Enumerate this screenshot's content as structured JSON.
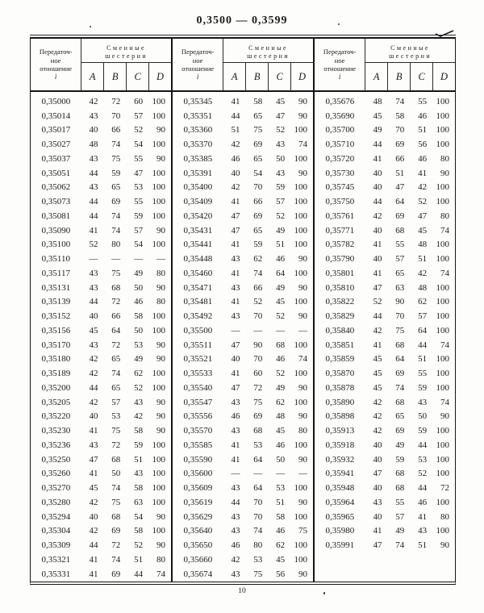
{
  "title": "0,3500 — 0,3599",
  "page_number": "10",
  "header": {
    "ratio_label_lines": [
      "Передаточ-",
      "ное",
      "отношение",
      "i"
    ],
    "gears_label_line1": "Сменные",
    "gears_label_line2": "шестерни",
    "gear_columns": [
      "A",
      "B",
      "C",
      "D"
    ]
  },
  "tables": [
    {
      "rows": [
        [
          "0,35000",
          "42",
          "72",
          "60",
          "100"
        ],
        [
          "0,35014",
          "43",
          "70",
          "57",
          "100"
        ],
        [
          "0,35017",
          "40",
          "66",
          "52",
          "90"
        ],
        [
          "0,35027",
          "48",
          "74",
          "54",
          "100"
        ],
        [
          "0,35037",
          "43",
          "75",
          "55",
          "90"
        ],
        [
          "0,35051",
          "44",
          "59",
          "47",
          "100"
        ],
        [
          "0,35062",
          "43",
          "65",
          "53",
          "100"
        ],
        [
          "0,35073",
          "44",
          "69",
          "55",
          "100"
        ],
        [
          "0,35081",
          "44",
          "74",
          "59",
          "100"
        ],
        [
          "0,35090",
          "41",
          "74",
          "57",
          "90"
        ],
        [
          "0,35100",
          "52",
          "80",
          "54",
          "100"
        ],
        [
          "0,35110",
          "—",
          "—",
          "—",
          "—"
        ],
        [
          "0,35117",
          "43",
          "75",
          "49",
          "80"
        ],
        [
          "0,35131",
          "43",
          "68",
          "50",
          "90"
        ],
        [
          "0,35139",
          "44",
          "72",
          "46",
          "80"
        ],
        [
          "0,35152",
          "40",
          "66",
          "58",
          "100"
        ],
        [
          "0,35156",
          "45",
          "64",
          "50",
          "100"
        ],
        [
          "0,35170",
          "43",
          "72",
          "53",
          "90"
        ],
        [
          "0,35180",
          "42",
          "65",
          "49",
          "90"
        ],
        [
          "0,35189",
          "42",
          "74",
          "62",
          "100"
        ],
        [
          "0,35200",
          "44",
          "65",
          "52",
          "100"
        ],
        [
          "0,35205",
          "42",
          "57",
          "43",
          "90"
        ],
        [
          "0,35220",
          "40",
          "53",
          "42",
          "90"
        ],
        [
          "0,35230",
          "41",
          "75",
          "58",
          "90"
        ],
        [
          "0,35236",
          "43",
          "72",
          "59",
          "100"
        ],
        [
          "0,35250",
          "47",
          "68",
          "51",
          "100"
        ],
        [
          "0,35260",
          "41",
          "50",
          "43",
          "100"
        ],
        [
          "0,35270",
          "45",
          "74",
          "58",
          "100"
        ],
        [
          "0,35280",
          "42",
          "75",
          "63",
          "100"
        ],
        [
          "0,35294",
          "40",
          "68",
          "54",
          "90"
        ],
        [
          "0,35304",
          "42",
          "69",
          "58",
          "100"
        ],
        [
          "0,35309",
          "44",
          "72",
          "52",
          "90"
        ],
        [
          "0,35321",
          "41",
          "74",
          "51",
          "80"
        ],
        [
          "0,35331",
          "41",
          "69",
          "44",
          "74"
        ]
      ]
    },
    {
      "rows": [
        [
          "0,35345",
          "41",
          "58",
          "45",
          "90"
        ],
        [
          "0,35351",
          "44",
          "65",
          "47",
          "90"
        ],
        [
          "0,35360",
          "51",
          "75",
          "52",
          "100"
        ],
        [
          "0,35370",
          "42",
          "69",
          "43",
          "74"
        ],
        [
          "0,35385",
          "46",
          "65",
          "50",
          "100"
        ],
        [
          "0,35391",
          "40",
          "54",
          "43",
          "90"
        ],
        [
          "0,35400",
          "42",
          "70",
          "59",
          "100"
        ],
        [
          "0,35409",
          "41",
          "66",
          "57",
          "100"
        ],
        [
          "0,35420",
          "47",
          "69",
          "52",
          "100"
        ],
        [
          "0,35431",
          "47",
          "65",
          "49",
          "100"
        ],
        [
          "0,35441",
          "41",
          "59",
          "51",
          "100"
        ],
        [
          "0,35448",
          "43",
          "62",
          "46",
          "90"
        ],
        [
          "0,35460",
          "41",
          "74",
          "64",
          "100"
        ],
        [
          "0,35471",
          "43",
          "66",
          "49",
          "90"
        ],
        [
          "0,35481",
          "41",
          "52",
          "45",
          "100"
        ],
        [
          "0,35492",
          "43",
          "70",
          "52",
          "90"
        ],
        [
          "0,35500",
          "—",
          "—",
          "—",
          "—"
        ],
        [
          "0,35511",
          "47",
          "90",
          "68",
          "100"
        ],
        [
          "0,35521",
          "40",
          "70",
          "46",
          "74"
        ],
        [
          "0,35533",
          "41",
          "60",
          "52",
          "100"
        ],
        [
          "0,35540",
          "47",
          "72",
          "49",
          "90"
        ],
        [
          "0,35547",
          "43",
          "75",
          "62",
          "100"
        ],
        [
          "0,35556",
          "46",
          "69",
          "48",
          "90"
        ],
        [
          "0,35570",
          "43",
          "68",
          "45",
          "80"
        ],
        [
          "0,35585",
          "41",
          "53",
          "46",
          "100"
        ],
        [
          "0,35590",
          "41",
          "64",
          "50",
          "90"
        ],
        [
          "0,35600",
          "—",
          "—",
          "—",
          "—"
        ],
        [
          "0,35609",
          "43",
          "64",
          "53",
          "100"
        ],
        [
          "0,35619",
          "44",
          "70",
          "51",
          "90"
        ],
        [
          "0,35629",
          "43",
          "70",
          "58",
          "100"
        ],
        [
          "0,35640",
          "43",
          "74",
          "46",
          "75"
        ],
        [
          "0,35650",
          "46",
          "80",
          "62",
          "100"
        ],
        [
          "0,35660",
          "42",
          "53",
          "45",
          "100"
        ],
        [
          "0,35674",
          "43",
          "75",
          "56",
          "90"
        ]
      ]
    },
    {
      "rows": [
        [
          "0,35676",
          "48",
          "74",
          "55",
          "100"
        ],
        [
          "0,35690",
          "45",
          "58",
          "46",
          "100"
        ],
        [
          "0,35700",
          "49",
          "70",
          "51",
          "100"
        ],
        [
          "0,35710",
          "44",
          "69",
          "56",
          "100"
        ],
        [
          "0,35720",
          "41",
          "66",
          "46",
          "80"
        ],
        [
          "0,35730",
          "40",
          "51",
          "41",
          "90"
        ],
        [
          "0,35745",
          "40",
          "47",
          "42",
          "100"
        ],
        [
          "0,35750",
          "44",
          "64",
          "52",
          "100"
        ],
        [
          "0,35761",
          "42",
          "69",
          "47",
          "80"
        ],
        [
          "0,35771",
          "40",
          "68",
          "45",
          "74"
        ],
        [
          "0,35782",
          "41",
          "55",
          "48",
          "100"
        ],
        [
          "0,35790",
          "40",
          "57",
          "51",
          "100"
        ],
        [
          "0,35801",
          "41",
          "65",
          "42",
          "74"
        ],
        [
          "0,35810",
          "47",
          "63",
          "48",
          "100"
        ],
        [
          "0,35822",
          "52",
          "90",
          "62",
          "100"
        ],
        [
          "0,35829",
          "44",
          "70",
          "57",
          "100"
        ],
        [
          "0,35840",
          "42",
          "75",
          "64",
          "100"
        ],
        [
          "0,35851",
          "41",
          "68",
          "44",
          "74"
        ],
        [
          "0,35859",
          "45",
          "64",
          "51",
          "100"
        ],
        [
          "0,35870",
          "45",
          "69",
          "55",
          "100"
        ],
        [
          "0,35878",
          "45",
          "74",
          "59",
          "100"
        ],
        [
          "0,35890",
          "42",
          "68",
          "43",
          "74"
        ],
        [
          "0,35898",
          "42",
          "65",
          "50",
          "90"
        ],
        [
          "0,35913",
          "42",
          "69",
          "59",
          "100"
        ],
        [
          "0,35918",
          "40",
          "49",
          "44",
          "100"
        ],
        [
          "0,35932",
          "40",
          "59",
          "53",
          "100"
        ],
        [
          "0,35941",
          "47",
          "68",
          "52",
          "100"
        ],
        [
          "0,35948",
          "40",
          "68",
          "44",
          "72"
        ],
        [
          "0,35964",
          "43",
          "55",
          "46",
          "100"
        ],
        [
          "0,35965",
          "40",
          "57",
          "41",
          "80"
        ],
        [
          "0,35980",
          "41",
          "49",
          "43",
          "100"
        ],
        [
          "0,35991",
          "47",
          "74",
          "51",
          "90"
        ]
      ]
    }
  ]
}
